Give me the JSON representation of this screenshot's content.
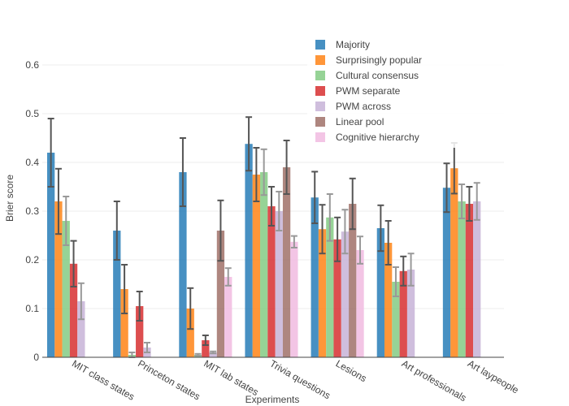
{
  "chart_data": {
    "type": "bar",
    "xlabel": "Experiments",
    "ylabel": "Brier score",
    "ylim": [
      0,
      0.6667
    ],
    "yticks": [
      0,
      0.1,
      0.2,
      0.3,
      0.4,
      0.5,
      0.6
    ],
    "ytick_labels": [
      "0",
      "0.1",
      "0.2",
      "0.3",
      "0.4",
      "0.5",
      "0.6"
    ],
    "grid": true,
    "legend_position": "top-right",
    "categories": [
      "MIT class states",
      "Princeton states",
      "MIT lab states",
      "Trivia questions",
      "Lesions",
      "Art professionals",
      "Art laypeople"
    ],
    "series": [
      {
        "name": "Majority",
        "color": "#1f77b4",
        "values": [
          0.42,
          0.26,
          0.38,
          0.438,
          0.328,
          0.265,
          0.348
        ],
        "errors": [
          0.07,
          0.06,
          0.07,
          0.055,
          0.053,
          0.047,
          0.05
        ]
      },
      {
        "name": "Surprisingly popular",
        "color": "#ff7f0e",
        "values": [
          0.32,
          0.14,
          0.1,
          0.375,
          0.263,
          0.235,
          0.388
        ],
        "errors": [
          0.067,
          0.05,
          0.042,
          0.055,
          0.05,
          0.045,
          0.052
        ]
      },
      {
        "name": "Cultural consensus",
        "color": "#7fc97f",
        "values": [
          0.28,
          0.005,
          0.005,
          0.38,
          0.287,
          0.155,
          0.32
        ],
        "errors": [
          0.05,
          0.005,
          0.002,
          0.047,
          0.048,
          0.03,
          0.035
        ]
      },
      {
        "name": "PWM separate",
        "color": "#d62728",
        "values": [
          0.192,
          0.105,
          0.035,
          0.31,
          0.242,
          0.177,
          0.315
        ],
        "errors": [
          0.047,
          0.03,
          0.01,
          0.04,
          0.045,
          0.03,
          0.035
        ]
      },
      {
        "name": "PWM across",
        "color": "#c5b0d5",
        "values": [
          0.115,
          0.02,
          0.01,
          0.3,
          0.258,
          0.18,
          0.32
        ],
        "errors": [
          0.037,
          0.01,
          0.002,
          0.04,
          0.045,
          0.033,
          0.038
        ]
      },
      {
        "name": "Linear pool",
        "color": "#9c6b63",
        "values": [
          null,
          null,
          0.26,
          0.39,
          0.315,
          null,
          null
        ],
        "errors": [
          null,
          null,
          0.062,
          0.055,
          0.052,
          null,
          null
        ]
      },
      {
        "name": "Cognitive hierarchy",
        "color": "#f0b8df",
        "values": [
          null,
          null,
          0.165,
          0.237,
          0.22,
          null,
          null
        ],
        "errors": [
          null,
          null,
          0.018,
          0.012,
          0.028,
          null,
          null
        ]
      }
    ]
  }
}
